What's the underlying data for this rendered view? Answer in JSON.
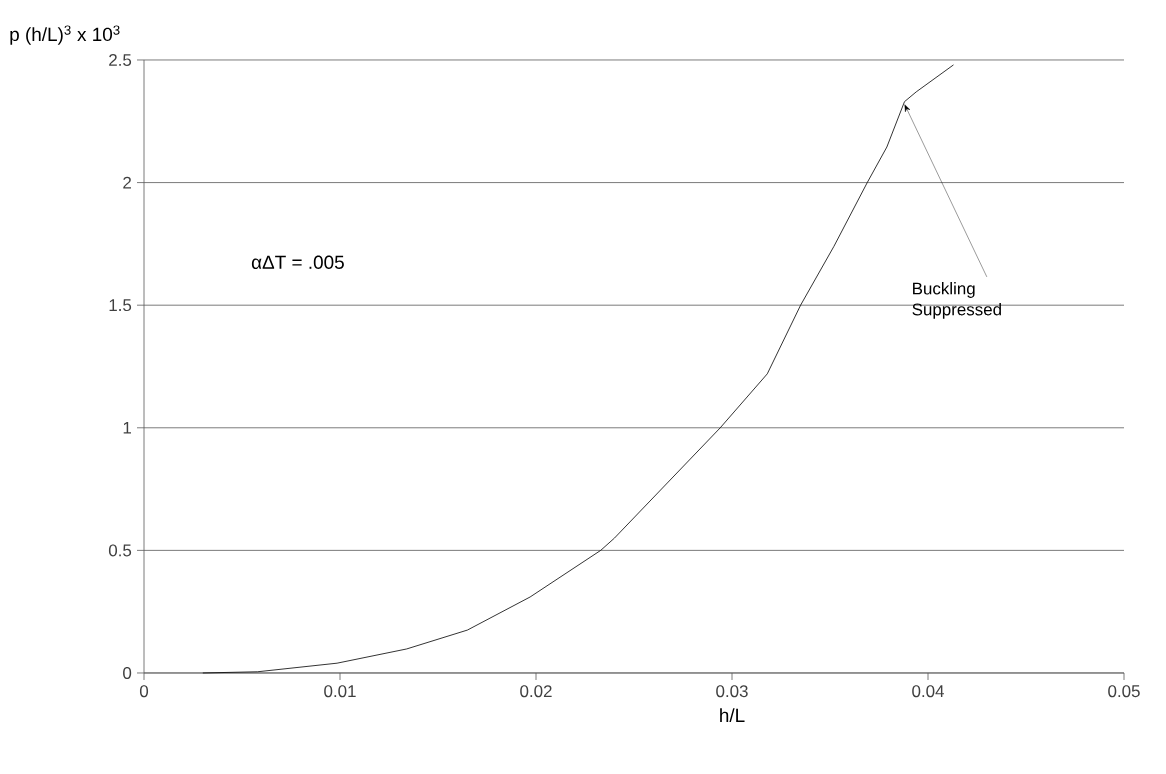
{
  "chart_data": {
    "type": "line",
    "xlabel": "h/L",
    "ylabel": "p (h/L)$^{3}$ x 10$^{3}$",
    "xlim": [
      0,
      0.05
    ],
    "ylim": [
      0,
      2.5
    ],
    "xticks": [
      0,
      0.01,
      0.02,
      0.03,
      0.04,
      0.05
    ],
    "yticks": [
      0,
      0.5,
      1,
      1.5,
      2,
      2.5
    ],
    "grid": "y",
    "marker": "none",
    "line_style": "solid",
    "annotations": [
      "αΔT = .005",
      {
        "text": "Buckling Suppressed",
        "x": 0.0388,
        "y": 2.32
      }
    ],
    "series": [
      {
        "color": "#000000",
        "x": [
          0.003,
          0.0058,
          0.00985,
          0.0134,
          0.0165,
          0.0197,
          0.0233,
          0.024,
          0.0267,
          0.0294,
          0.0318,
          0.0335,
          0.0352,
          0.0369,
          0.0379,
          0.0388,
          0.0394,
          0.0413
        ],
        "values": [
          0,
          0.005,
          0.04,
          0.098,
          0.175,
          0.31,
          0.5,
          0.55,
          0.775,
          1.0,
          1.22,
          1.5,
          1.74,
          2.0,
          2.145,
          2.33,
          2.37,
          2.48
        ]
      }
    ]
  }
}
